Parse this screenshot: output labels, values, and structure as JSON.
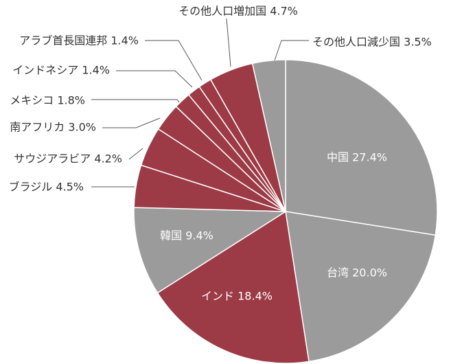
{
  "chart_data": {
    "type": "pie",
    "start_angle_deg": 0,
    "direction": "clockwise",
    "slices": [
      {
        "label": "中国",
        "value": 27.4,
        "value_text": "27.4%",
        "color": "#9b9b9b",
        "label_position": "inside"
      },
      {
        "label": "台湾",
        "value": 20.0,
        "value_text": "20.0%",
        "color": "#9b9b9b",
        "label_position": "inside"
      },
      {
        "label": "インド",
        "value": 18.4,
        "value_text": "18.4%",
        "color": "#9c3b45",
        "label_position": "inside"
      },
      {
        "label": "韓国",
        "value": 9.4,
        "value_text": "9.4%",
        "color": "#9b9b9b",
        "label_position": "inside"
      },
      {
        "label": "ブラジル",
        "value": 4.5,
        "value_text": "4.5%",
        "color": "#9c3b45",
        "label_position": "outside"
      },
      {
        "label": "サウジアラビア",
        "value": 4.2,
        "value_text": "4.2%",
        "color": "#9c3b45",
        "label_position": "outside"
      },
      {
        "label": "南アフリカ",
        "value": 3.0,
        "value_text": "3.0%",
        "color": "#9c3b45",
        "label_position": "outside"
      },
      {
        "label": "メキシコ",
        "value": 1.8,
        "value_text": "1.8%",
        "color": "#9c3b45",
        "label_position": "outside"
      },
      {
        "label": "インドネシア",
        "value": 1.4,
        "value_text": "1.4%",
        "color": "#9c3b45",
        "label_position": "outside"
      },
      {
        "label": "アラブ首長国連邦",
        "value": 1.4,
        "value_text": "1.4%",
        "color": "#9c3b45",
        "label_position": "outside"
      },
      {
        "label": "その他人口増加国",
        "value": 4.7,
        "value_text": "4.7%",
        "color": "#9c3b45",
        "label_position": "outside"
      },
      {
        "label": "その他人口減少国",
        "value": 3.5,
        "value_text": "3.5%",
        "color": "#9b9b9b",
        "label_position": "outside"
      }
    ]
  }
}
